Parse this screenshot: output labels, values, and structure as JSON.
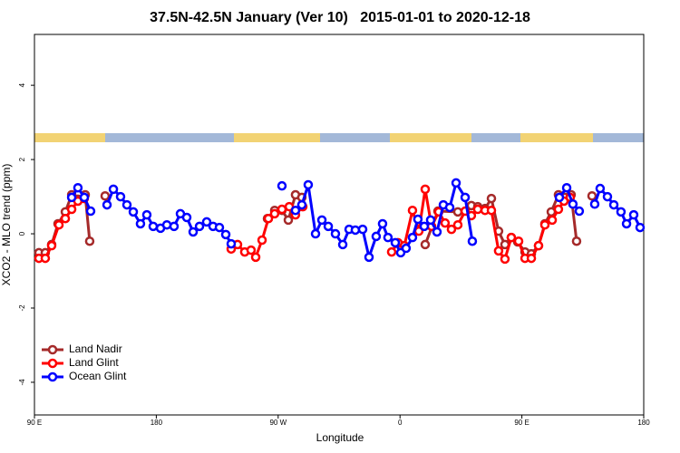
{
  "chart_data": {
    "type": "line",
    "title": "37.5N-42.5N January (Ver 10)   2015-01-01 to 2020-12-18",
    "x_label": "Longitude",
    "y_label": "XCO2 - MLO trend (ppm)",
    "xlim": [
      90,
      540
    ],
    "ylim": [
      -4.88,
      5.37
    ],
    "xticks": [
      {
        "value": 90,
        "label": "90 E"
      },
      180,
      {
        "value": 270,
        "label": "90 W"
      },
      {
        "value": 360,
        "label": "0"
      },
      {
        "value": 450,
        "label": "90 E"
      },
      {
        "value": 540,
        "label": "180"
      }
    ],
    "yticks": [
      -4,
      -2,
      0,
      2,
      4
    ],
    "grid": false,
    "legend": "bottomleft",
    "series": [
      {
        "name": "Land Nadir",
        "color": "#a52a2a",
        "x": [
          93.3,
          98.0,
          102.7,
          107.4,
          112.8,
          117.5,
          122.1,
          127.5,
          130.8,
          null,
          142.2,
          null,
          262.1,
          267.4,
          272.8,
          277.5,
          282.8,
          287.5,
          null,
          378.6,
          388.0,
          402.7,
          412.7,
          417.4,
          422.8,
          427.5,
          432.8,
          437.5,
          442.2,
          446.9,
          452.3,
          457.0,
          462.3,
          467.0,
          471.7,
          477.0,
          481.7,
          486.4,
          490.4,
          null,
          501.8
        ],
        "values": [
          -0.51,
          -0.51,
          -0.29,
          0.27,
          0.59,
          1.05,
          0.93,
          1.05,
          -0.2,
          null,
          1.02,
          null,
          0.41,
          0.63,
          0.63,
          0.37,
          1.05,
          0.98,
          null,
          -0.29,
          0.61,
          0.59,
          0.76,
          0.73,
          0.68,
          0.95,
          0.07,
          -0.29,
          -0.1,
          -0.22,
          -0.49,
          -0.54,
          -0.32,
          0.27,
          0.59,
          1.05,
          0.98,
          1.05,
          -0.2,
          null,
          1.02
        ]
      },
      {
        "name": "Land Glint",
        "color": "#ff0000",
        "x": [
          93.3,
          98.0,
          102.7,
          108.1,
          112.8,
          117.5,
          122.1,
          126.8,
          null,
          235.3,
          240.0,
          245.3,
          250.0,
          253.4,
          258.1,
          262.8,
          267.4,
          272.8,
          278.2,
          282.8,
          288.2,
          null,
          353.8,
          358.5,
          363.2,
          369.2,
          373.9,
          378.6,
          383.3,
          388.6,
          393.3,
          398.0,
          402.7,
          408.1,
          412.7,
          417.4,
          422.8,
          427.5,
          432.8,
          437.5,
          442.2,
          447.6,
          452.3,
          457.0,
          462.3,
          467.0,
          472.4,
          477.0,
          481.1,
          485.7
        ],
        "values": [
          -0.66,
          -0.66,
          -0.32,
          0.24,
          0.41,
          0.66,
          0.88,
          0.95,
          null,
          -0.41,
          -0.29,
          -0.49,
          -0.44,
          -0.63,
          -0.17,
          0.41,
          0.54,
          0.66,
          0.73,
          0.51,
          0.73,
          null,
          -0.49,
          -0.24,
          -0.32,
          0.63,
          0.07,
          1.2,
          0.2,
          0.59,
          0.29,
          0.12,
          0.24,
          0.61,
          0.49,
          0.66,
          0.63,
          0.63,
          -0.46,
          -0.68,
          -0.1,
          -0.2,
          -0.66,
          -0.66,
          -0.32,
          0.24,
          0.37,
          0.66,
          0.88,
          0.98
        ]
      },
      {
        "name": "Ocean Glint",
        "color": "#0000ff",
        "x": [
          117.5,
          122.1,
          126.8,
          131.5,
          null,
          143.6,
          148.3,
          153.6,
          158.3,
          163.0,
          168.3,
          173.0,
          177.7,
          183.1,
          187.8,
          193.1,
          197.8,
          202.5,
          207.2,
          211.9,
          217.2,
          221.9,
          226.6,
          231.3,
          235.3,
          null,
          272.8,
          null,
          282.8,
          287.5,
          292.2,
          297.6,
          302.3,
          307.0,
          312.3,
          317.7,
          322.4,
          327.0,
          332.4,
          337.1,
          342.4,
          347.1,
          351.1,
          356.5,
          360.5,
          364.5,
          369.2,
          373.2,
          377.9,
          382.6,
          387.3,
          392.0,
          396.7,
          401.4,
          408.1,
          413.4,
          null,
          477.7,
          483.1,
          487.7,
          492.4,
          null,
          503.8,
          507.8,
          513.2,
          517.9,
          523.2,
          527.3,
          532.6,
          537.3
        ],
        "values": [
          0.98,
          1.24,
          0.98,
          0.61,
          null,
          0.78,
          1.2,
          1.0,
          0.78,
          0.59,
          0.27,
          0.51,
          0.2,
          0.15,
          0.24,
          0.2,
          0.54,
          0.44,
          0.05,
          0.2,
          0.32,
          0.2,
          0.17,
          -0.02,
          -0.27,
          null,
          1.29,
          null,
          0.63,
          0.78,
          1.32,
          0,
          0.37,
          0.2,
          0,
          -0.29,
          0.12,
          0.1,
          0.12,
          -0.63,
          -0.07,
          0.27,
          -0.1,
          -0.24,
          -0.51,
          -0.39,
          -0.1,
          0.39,
          0.2,
          0.37,
          0.05,
          0.78,
          0.71,
          1.37,
          0.98,
          -0.2,
          null,
          0.98,
          1.24,
          0.8,
          0.61,
          null,
          0.8,
          1.22,
          1.0,
          0.78,
          0.59,
          0.27,
          0.51,
          0.17
        ]
      }
    ]
  }
}
